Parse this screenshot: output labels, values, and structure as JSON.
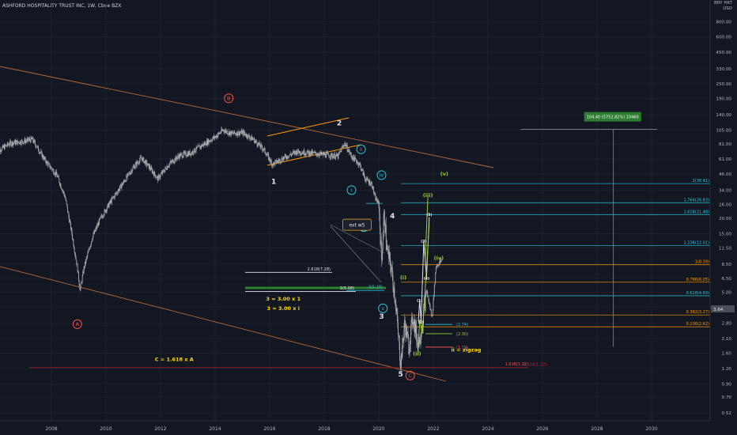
{
  "header": {
    "title": "ASHFORD HOSPITALITY TRUST INC, 1W, Cboe BZX"
  },
  "yaxis": {
    "unit_lines": [
      "BRY HKT",
      "USD"
    ]
  },
  "colors": {
    "background": "#131722",
    "candle": "#a7a9ad",
    "brown": "#b46a3a",
    "red": "#ef5350",
    "cyan": "#26c6da",
    "green": "#2e7d32",
    "lime": "#9ccc36",
    "yellow": "#ffd600",
    "orange": "#ff9800",
    "white": "#e0e3eb",
    "ruler": "#4caf50"
  },
  "chart_data": {
    "type": "candlestick",
    "title": "ASHFORD HOSPITALITY TRUST INC, 1W, Cboe BZX",
    "yscale": "log",
    "ylim": [
      0.45,
      1200
    ],
    "y_ticks": [
      "800.00",
      "600.00",
      "450.00",
      "330.00",
      "250.00",
      "190.00",
      "140.00",
      "105.00",
      "81.00",
      "61.00",
      "46.00",
      "34.00",
      "26.00",
      "20.00",
      "15.00",
      "11.50",
      "8.50",
      "6.50",
      "5.00",
      "3.80",
      "2.80",
      "2.10",
      "1.60",
      "1.20",
      "0.90",
      "0.70",
      "0.52"
    ],
    "x_ticks": [
      "2008",
      "2010",
      "2012",
      "2014",
      "2016",
      "2018",
      "2020",
      "2022",
      "2024",
      "2026",
      "2028",
      "2030"
    ],
    "xlim": [
      2006.0,
      2032.0
    ],
    "last_price": "3.64",
    "price_path": [
      [
        2006.0,
        70
      ],
      [
        2006.5,
        82
      ],
      [
        2007.0,
        85
      ],
      [
        2007.3,
        88
      ],
      [
        2007.8,
        58
      ],
      [
        2008.2,
        45
      ],
      [
        2008.5,
        30
      ],
      [
        2008.75,
        15
      ],
      [
        2008.95,
        8
      ],
      [
        2009.05,
        5.2
      ],
      [
        2009.2,
        8
      ],
      [
        2009.5,
        14
      ],
      [
        2009.8,
        20
      ],
      [
        2010.2,
        28
      ],
      [
        2010.6,
        38
      ],
      [
        2011.0,
        52
      ],
      [
        2011.3,
        62
      ],
      [
        2011.6,
        52
      ],
      [
        2011.9,
        42
      ],
      [
        2012.3,
        55
      ],
      [
        2012.7,
        65
      ],
      [
        2013.1,
        68
      ],
      [
        2013.5,
        78
      ],
      [
        2014.0,
        92
      ],
      [
        2014.3,
        105
      ],
      [
        2014.6,
        98
      ],
      [
        2015.0,
        100
      ],
      [
        2015.4,
        88
      ],
      [
        2015.8,
        72
      ],
      [
        2016.1,
        55
      ],
      [
        2016.5,
        62
      ],
      [
        2017.0,
        70
      ],
      [
        2017.5,
        68
      ],
      [
        2018.0,
        66
      ],
      [
        2018.5,
        64
      ],
      [
        2018.75,
        82
      ],
      [
        2019.0,
        64
      ],
      [
        2019.3,
        55
      ],
      [
        2019.5,
        42
      ],
      [
        2019.75,
        38
      ],
      [
        2019.85,
        30
      ],
      [
        2020.0,
        26
      ],
      [
        2020.1,
        9
      ],
      [
        2020.2,
        22
      ],
      [
        2020.3,
        11
      ],
      [
        2020.45,
        8
      ],
      [
        2020.6,
        4.5
      ],
      [
        2020.8,
        1.3
      ],
      [
        2020.95,
        2.8
      ],
      [
        2021.1,
        1.8
      ],
      [
        2021.25,
        3.2
      ],
      [
        2021.45,
        1.85
      ],
      [
        2021.6,
        2.9
      ],
      [
        2021.75,
        5.2
      ],
      [
        2021.95,
        3.1
      ],
      [
        2022.1,
        8.2
      ],
      [
        2022.3,
        9.0
      ]
    ],
    "fib_levels": [
      {
        "label": "2(38.41)",
        "value": 38.41,
        "color": "cyan"
      },
      {
        "label": "1.764(26.83)",
        "value": 26.83,
        "color": "cyan"
      },
      {
        "label": "1.618(21.48)",
        "value": 21.48,
        "color": "cyan"
      },
      {
        "label": "1.236(12.01)",
        "value": 12.01,
        "color": "cyan"
      },
      {
        "label": "1(8.39)",
        "value": 8.39,
        "color": "orange"
      },
      {
        "label": "0.786(6.05)",
        "value": 6.05,
        "color": "orange"
      },
      {
        "label": "0.618(4.69)",
        "value": 4.69,
        "color": "cyan"
      },
      {
        "label": "0.382(3.27)",
        "value": 3.27,
        "color": "orange"
      },
      {
        "label": "0.236(2.62)",
        "value": 2.62,
        "color": "orange"
      }
    ],
    "ext_levels": [
      {
        "label": "2.618(7.28)",
        "value": 7.28,
        "color": "white"
      },
      {
        "label": "3(5.08)",
        "value": 5.08,
        "color": "white"
      },
      {
        "label": "3(5.18)",
        "value": 5.18,
        "color": "cyan"
      },
      {
        "label": "1.618(1.22)",
        "value": 1.22,
        "color": "red"
      }
    ],
    "target_levels": [
      {
        "label": "(2.74)",
        "value": 2.74,
        "color": "cyan"
      },
      {
        "label": "(2.30)",
        "value": 2.3,
        "color": "lime"
      },
      {
        "label": "(1.79)",
        "value": 1.79,
        "color": "red"
      }
    ],
    "measurement": {
      "label": "104.40 (5752.82%) 10460",
      "from": 1.8,
      "to": 106
    },
    "wave_labels": [
      {
        "text": "A",
        "x": 2008.95,
        "y": 2.75,
        "style": "circle-red"
      },
      {
        "text": "B",
        "x": 2014.5,
        "y": 190,
        "style": "circle-red"
      },
      {
        "text": "C",
        "x": 2021.15,
        "y": 1.05,
        "style": "circle-red"
      },
      {
        "text": "1",
        "x": 2016.15,
        "y": 40,
        "style": "white"
      },
      {
        "text": "2",
        "x": 2018.55,
        "y": 120,
        "style": "white"
      },
      {
        "text": "3",
        "x": 2020.1,
        "y": 3.2,
        "style": "white"
      },
      {
        "text": "4",
        "x": 2020.5,
        "y": 21,
        "style": "white"
      },
      {
        "text": "5",
        "x": 2020.8,
        "y": 1.08,
        "style": "white"
      },
      {
        "text": "i",
        "x": 2019.0,
        "y": 34,
        "style": "circle-cyan"
      },
      {
        "text": "ii",
        "x": 2019.35,
        "y": 73,
        "style": "circle-cyan"
      },
      {
        "text": "iii",
        "x": 2019.45,
        "y": 17,
        "style": "circle-cyan"
      },
      {
        "text": "iv",
        "x": 2020.1,
        "y": 45,
        "style": "circle-cyan"
      },
      {
        "text": "v",
        "x": 2020.15,
        "y": 3.7,
        "style": "circle-cyan"
      },
      {
        "text": "(i)",
        "x": 2020.9,
        "y": 6.6,
        "style": "green"
      },
      {
        "text": "(ii)",
        "x": 2021.4,
        "y": 1.58,
        "style": "green"
      },
      {
        "text": "(iii)",
        "x": 2021.8,
        "y": 31,
        "style": "green"
      },
      {
        "text": "(iv)",
        "x": 2022.2,
        "y": 9.5,
        "style": "green"
      },
      {
        "text": "(v)",
        "x": 2022.4,
        "y": 46,
        "style": "green"
      },
      {
        "text": "(1)",
        "x": 2021.5,
        "y": 4.3,
        "style": "yellow-small"
      },
      {
        "text": "(2)",
        "x": 2021.55,
        "y": 2.85,
        "style": "yellow-small"
      },
      {
        "text": "(3)",
        "x": 2021.65,
        "y": 13,
        "style": "yellow-small"
      },
      {
        "text": "(4)",
        "x": 2021.75,
        "y": 6.5,
        "style": "yellow-small"
      },
      {
        "text": "(5)",
        "x": 2021.85,
        "y": 21.5,
        "style": "yellow-small"
      }
    ],
    "annotations": [
      {
        "text": "ext w5",
        "x": 2019.2,
        "y": 17.5,
        "style": "box"
      },
      {
        "text": "3 = 3.00 x 1",
        "x": 2016.5,
        "y": 4.3,
        "style": "yellow"
      },
      {
        "text": "3 = 3.00 x i",
        "x": 2016.5,
        "y": 3.6,
        "style": "yellow"
      },
      {
        "text": "C = 1.618 x A",
        "x": 2012.5,
        "y": 1.38,
        "style": "yellow"
      },
      {
        "text": "ii = zigzag",
        "x": 2023.2,
        "y": 1.65,
        "style": "yellow"
      },
      {
        "text": "1.618(1.22)",
        "x": 2025.3,
        "y": 1.22,
        "style": "red-label"
      }
    ]
  }
}
